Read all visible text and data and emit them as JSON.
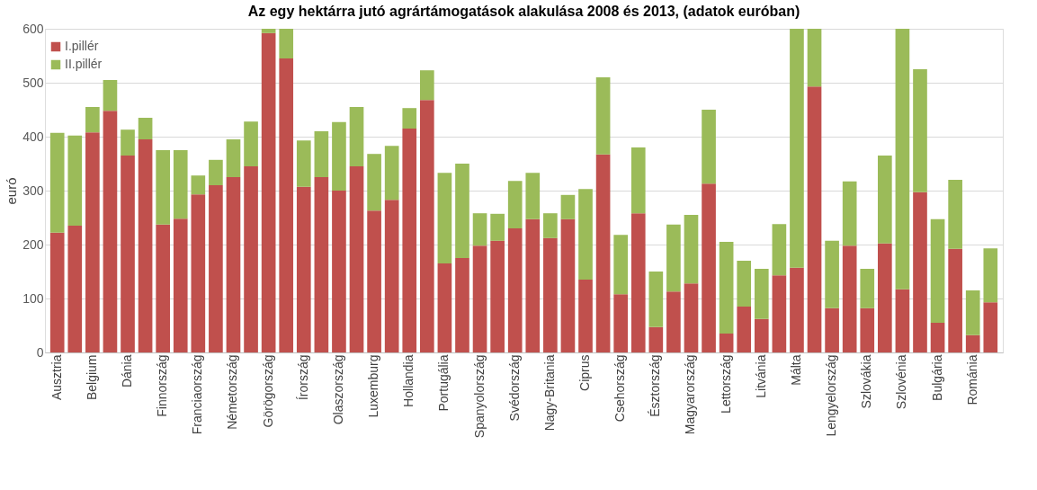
{
  "chart_data": {
    "type": "bar",
    "title": "Az egy hektárra jutó agrártámogatások alakulása 2008 és 2013, (adatok euróban)",
    "ylabel": "euró",
    "stacked": true,
    "categories": [
      "Ausztria",
      null,
      "Belgium",
      null,
      "Dánia",
      null,
      "Finnország",
      null,
      "Franciaország",
      null,
      "Németország",
      null,
      "Görögország",
      null,
      "Írország",
      null,
      "Olaszország",
      null,
      "Luxemburg",
      null,
      "Hollandia",
      null,
      "Portugália",
      null,
      "Spanyolország",
      null,
      "Svédország",
      null,
      "Nagy-Britania",
      null,
      "Ciprus",
      null,
      "Csehország",
      null,
      "Észtország",
      null,
      "Magyarország",
      null,
      "Lettország",
      null,
      "Litvánia",
      null,
      "Málta",
      null,
      "Lengyelország",
      null,
      "Szlovákia",
      null,
      "Szlovénia",
      null,
      "Bulgária",
      null,
      "Románia",
      null
    ],
    "series": [
      {
        "name": "I.pillér",
        "color": "#c0504d",
        "values": [
          222,
          235,
          408,
          448,
          365,
          395,
          237,
          248,
          293,
          310,
          325,
          345,
          592,
          545,
          307,
          325,
          300,
          345,
          263,
          283,
          415,
          468,
          165,
          175,
          198,
          207,
          230,
          247,
          212,
          247,
          135,
          367,
          108,
          258,
          47,
          113,
          128,
          313,
          35,
          85,
          62,
          143,
          157,
          493,
          82,
          198,
          82,
          202,
          117,
          297,
          55,
          192,
          32,
          93
        ]
      },
      {
        "name": "II.pillér",
        "color": "#9bbb59",
        "values": [
          185,
          167,
          47,
          57,
          48,
          40,
          138,
          127,
          35,
          47,
          70,
          83,
          8,
          55,
          86,
          85,
          127,
          110,
          105,
          100,
          38,
          55,
          168,
          175,
          60,
          50,
          88,
          86,
          46,
          45,
          168,
          143,
          110,
          122,
          103,
          124,
          127,
          137,
          170,
          85,
          93,
          95,
          443,
          107,
          125,
          119,
          73,
          163,
          483,
          228,
          192,
          128,
          83,
          100
        ]
      }
    ],
    "ylim": [
      0,
      600
    ],
    "yticks": [
      0,
      100,
      200,
      300,
      400,
      500,
      600
    ],
    "grid": "y",
    "legend": "top left"
  }
}
